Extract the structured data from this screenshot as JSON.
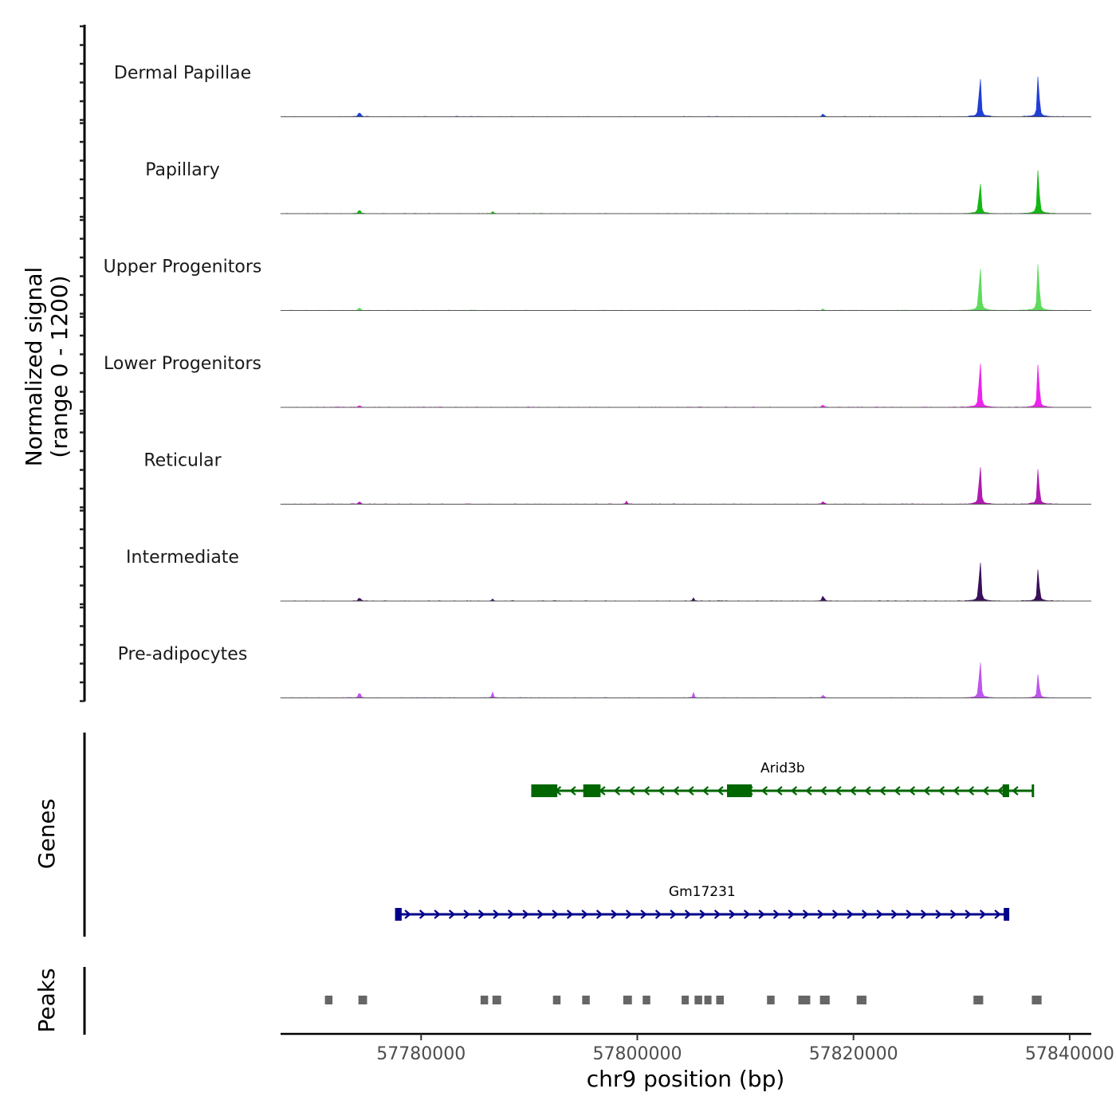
{
  "chart_data": {
    "type": "area",
    "title": "",
    "chromosome": "chr9",
    "xlabel": "chr9 position (bp)",
    "ylabel": "Normalized signal",
    "ylabel_range": "(range 0 - 1200)",
    "xlim": [
      57767000,
      57842000
    ],
    "ylim": [
      0,
      1200
    ],
    "x_ticks": [
      57780000,
      57800000,
      57820000,
      57840000
    ],
    "x_tick_labels": [
      "57780000",
      "57800000",
      "57820000",
      "57840000"
    ],
    "panel_labels": {
      "genes": "Genes",
      "peaks": "Peaks"
    },
    "series": [
      {
        "name": "Dermal Papillae",
        "color": "#1f3fd6",
        "peaks": [
          [
            57774300,
            140
          ],
          [
            57817200,
            85
          ],
          [
            57831700,
            1120
          ],
          [
            57837100,
            1060
          ]
        ]
      },
      {
        "name": "Papillary",
        "color": "#14b814",
        "peaks": [
          [
            57774300,
            120
          ],
          [
            57786600,
            40
          ],
          [
            57831700,
            880
          ],
          [
            57837100,
            1150
          ]
        ]
      },
      {
        "name": "Upper Progenitors",
        "color": "#5ddb5d",
        "peaks": [
          [
            57774300,
            80
          ],
          [
            57817200,
            40
          ],
          [
            57831700,
            1240
          ],
          [
            57837100,
            1240
          ]
        ]
      },
      {
        "name": "Lower Progenitors",
        "color": "#ee22ee",
        "peaks": [
          [
            57774300,
            60
          ],
          [
            57817200,
            60
          ],
          [
            57831700,
            1300
          ],
          [
            57837100,
            1140
          ]
        ]
      },
      {
        "name": "Reticular",
        "color": "#b01ab0",
        "peaks": [
          [
            57774300,
            80
          ],
          [
            57799000,
            50
          ],
          [
            57817200,
            80
          ],
          [
            57831700,
            1100
          ],
          [
            57837100,
            920
          ]
        ]
      },
      {
        "name": "Intermediate",
        "color": "#3a0f5a",
        "peaks": [
          [
            57774300,
            90
          ],
          [
            57786600,
            40
          ],
          [
            57805200,
            50
          ],
          [
            57817200,
            150
          ],
          [
            57831700,
            1140
          ],
          [
            57837100,
            830
          ]
        ]
      },
      {
        "name": "Pre-adipocytes",
        "color": "#bd55ee",
        "peaks": [
          [
            57774300,
            170
          ],
          [
            57786600,
            110
          ],
          [
            57805200,
            80
          ],
          [
            57817200,
            80
          ],
          [
            57831700,
            1040
          ],
          [
            57837100,
            620
          ]
        ]
      }
    ],
    "genes": [
      {
        "name": "Arid3b",
        "strand": "-",
        "start": 57790300,
        "end": 57836600,
        "color": "#006600",
        "exons": [
          [
            57790300,
            57792600
          ],
          [
            57795000,
            57796600
          ],
          [
            57808300,
            57810600
          ],
          [
            57833800,
            57834400
          ]
        ]
      },
      {
        "name": "Gm17231",
        "strand": "+",
        "start": 57777700,
        "end": 57834300,
        "color": "#00008b",
        "exons": [
          [
            57777700,
            57778200
          ],
          [
            57833900,
            57834300
          ]
        ]
      }
    ],
    "peaks_track": [
      [
        57771100,
        57771800
      ],
      [
        57774200,
        57775000
      ],
      [
        57785500,
        57786200
      ],
      [
        57786600,
        57787400
      ],
      [
        57792200,
        57792900
      ],
      [
        57794900,
        57795600
      ],
      [
        57798700,
        57799500
      ],
      [
        57800500,
        57801200
      ],
      [
        57804100,
        57804700
      ],
      [
        57805300,
        57806000
      ],
      [
        57806200,
        57806800
      ],
      [
        57807300,
        57808000
      ],
      [
        57812000,
        57812700
      ],
      [
        57814900,
        57816000
      ],
      [
        57816900,
        57817800
      ],
      [
        57820300,
        57821200
      ],
      [
        57831100,
        57832000
      ],
      [
        57836500,
        57837400
      ]
    ],
    "peak_color": "#666666"
  }
}
